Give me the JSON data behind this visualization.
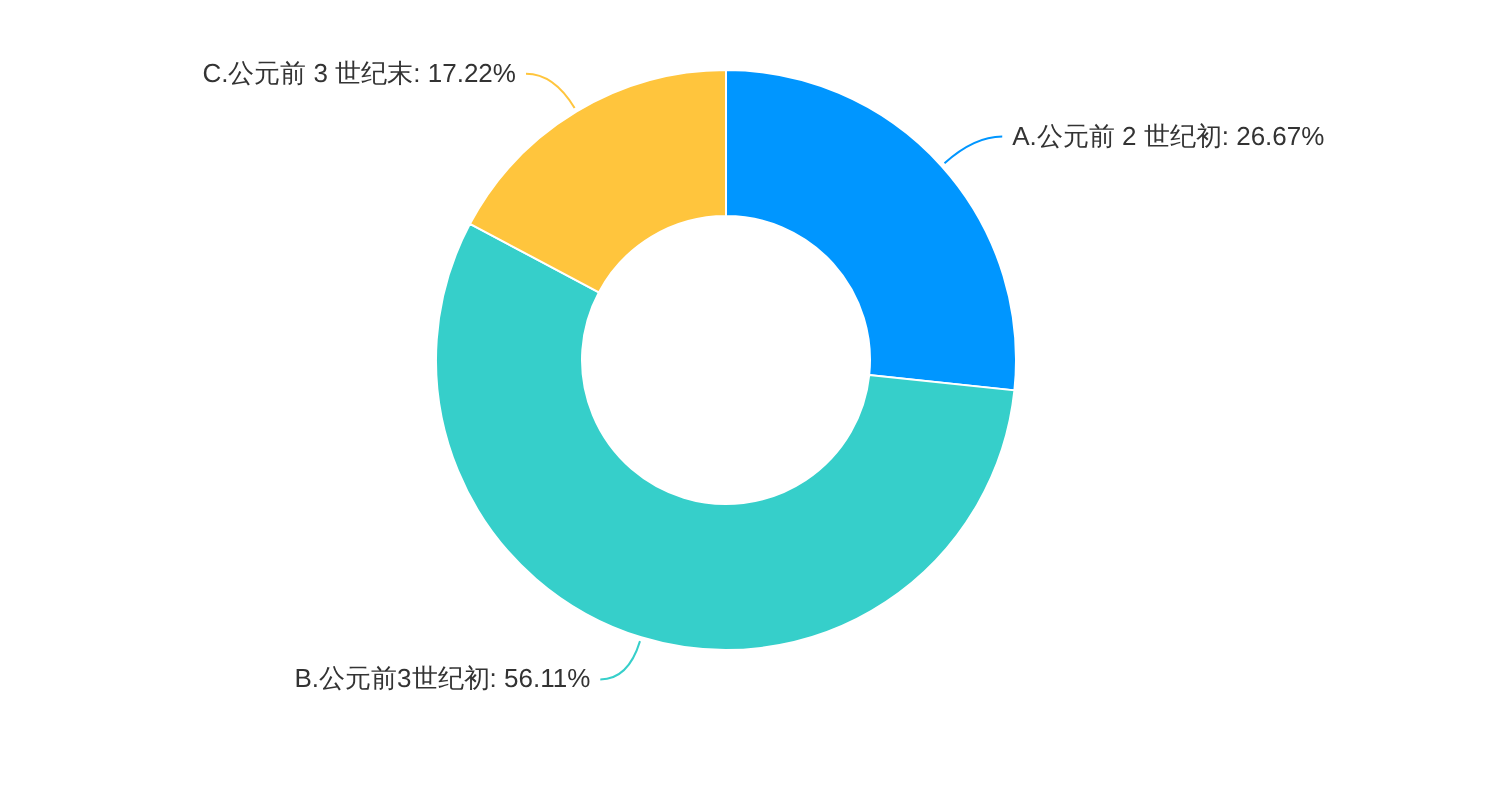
{
  "chart_data": {
    "type": "donut",
    "categories": [
      "A.公元前 2 世纪初",
      "B.公元前3世纪初",
      "C.公元前 3 世纪末"
    ],
    "values": [
      26.67,
      56.11,
      17.22
    ],
    "colors": [
      "#0096ff",
      "#36cfca",
      "#ffc53d"
    ],
    "value_labels": [
      ": 26.67%",
      ": 56.11%",
      ": 17.22%"
    ]
  }
}
